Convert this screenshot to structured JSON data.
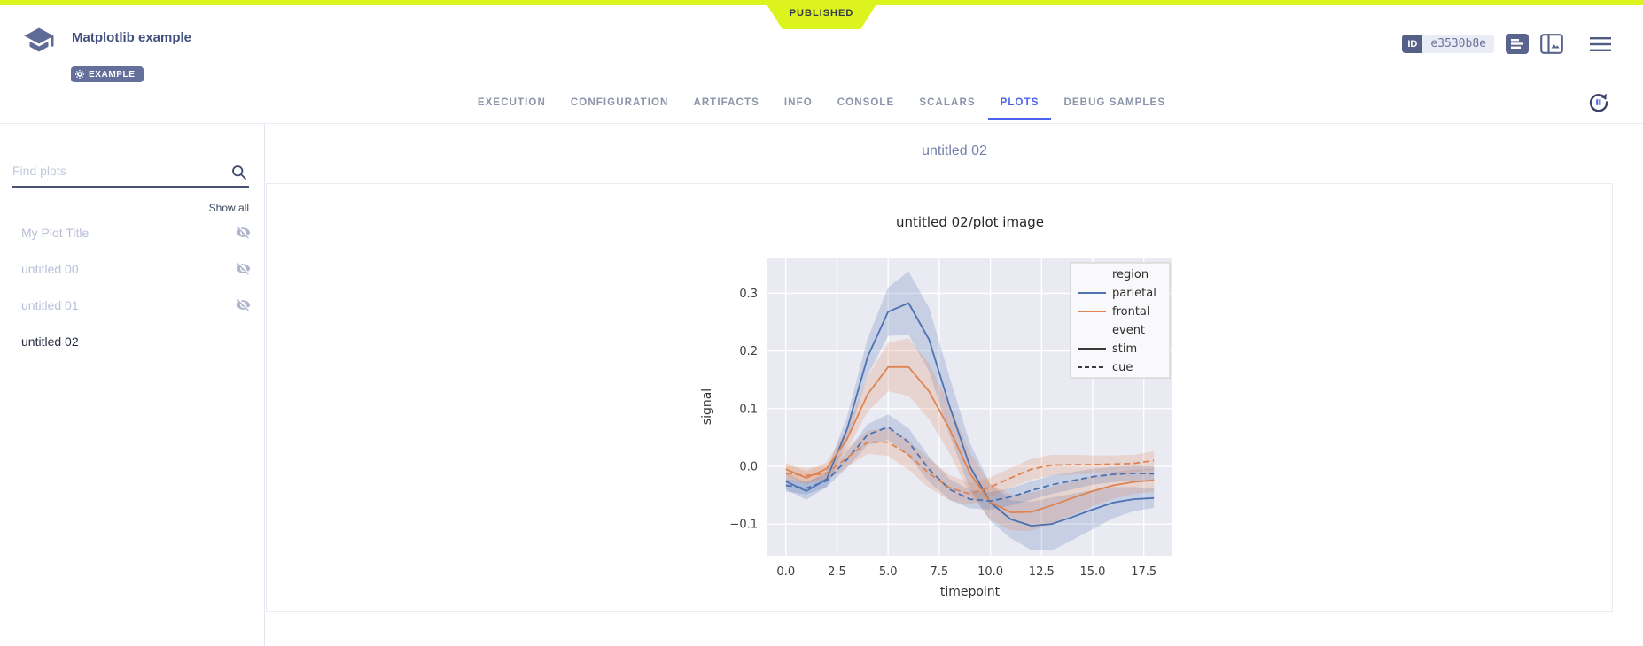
{
  "published_banner": {
    "label": "PUBLISHED"
  },
  "header": {
    "title": "Matplotlib example",
    "tag": "EXAMPLE",
    "id_chip": {
      "label": "ID",
      "value": "e3530b8e"
    },
    "accent_color": "#4a63ee",
    "banner_color": "#dcf31d",
    "icons": [
      "school-logo-icon",
      "details-icon",
      "side-panel-icon",
      "menu-icon",
      "auto-refresh-icon"
    ]
  },
  "tabs": {
    "items": [
      {
        "label": "EXECUTION",
        "active": false
      },
      {
        "label": "CONFIGURATION",
        "active": false
      },
      {
        "label": "ARTIFACTS",
        "active": false
      },
      {
        "label": "INFO",
        "active": false
      },
      {
        "label": "CONSOLE",
        "active": false
      },
      {
        "label": "SCALARS",
        "active": false
      },
      {
        "label": "PLOTS",
        "active": true
      },
      {
        "label": "DEBUG SAMPLES",
        "active": false
      }
    ]
  },
  "sidebar": {
    "search_placeholder": "Find plots",
    "show_all": "Show all",
    "items": [
      {
        "label": "My Plot Title",
        "hidden": true,
        "selected": false
      },
      {
        "label": "untitled 00",
        "hidden": true,
        "selected": false
      },
      {
        "label": "untitled 01",
        "hidden": true,
        "selected": false
      },
      {
        "label": "untitled 02",
        "hidden": false,
        "selected": true
      }
    ]
  },
  "main": {
    "group_title": "untitled 02"
  },
  "chart_data": {
    "type": "line",
    "title": "untitled 02/plot image",
    "xlabel": "timepoint",
    "ylabel": "signal",
    "xlim": [
      -0.9,
      18.9
    ],
    "ylim": [
      -0.155,
      0.362
    ],
    "x_ticks": [
      0.0,
      2.5,
      5.0,
      7.5,
      10.0,
      12.5,
      15.0,
      17.5
    ],
    "y_ticks": [
      -0.1,
      0.0,
      0.1,
      0.2,
      0.3
    ],
    "grid": true,
    "background": "#eaeaf2",
    "grid_color": "#ffffff",
    "legend": {
      "position": "upper right",
      "entries": [
        {
          "label": "region",
          "type": "title"
        },
        {
          "label": "parietal",
          "color": "#4c72b0",
          "dash": "solid"
        },
        {
          "label": "frontal",
          "color": "#dd8452",
          "dash": "solid"
        },
        {
          "label": "event",
          "type": "title"
        },
        {
          "label": "stim",
          "color": "#3a3a3a",
          "dash": "solid"
        },
        {
          "label": "cue",
          "color": "#3a3a3a",
          "dash": "dashed"
        }
      ]
    },
    "x": [
      0,
      1,
      2,
      3,
      4,
      5,
      6,
      7,
      8,
      9,
      10,
      11,
      12,
      13,
      14,
      15,
      16,
      17,
      18
    ],
    "series": [
      {
        "name": "parietal-stim",
        "color": "#4c72b0",
        "dash": "solid",
        "values": [
          -0.026,
          -0.043,
          -0.022,
          0.065,
          0.19,
          0.268,
          0.283,
          0.22,
          0.105,
          0.0,
          -0.063,
          -0.092,
          -0.103,
          -0.1,
          -0.088,
          -0.075,
          -0.063,
          -0.057,
          -0.055
        ],
        "ci_halfwidth": [
          0.014,
          0.015,
          0.014,
          0.022,
          0.032,
          0.042,
          0.055,
          0.055,
          0.05,
          0.04,
          0.032,
          0.033,
          0.042,
          0.046,
          0.04,
          0.034,
          0.027,
          0.021,
          0.017
        ]
      },
      {
        "name": "frontal-stim",
        "color": "#dd8452",
        "dash": "solid",
        "values": [
          -0.005,
          -0.02,
          -0.004,
          0.048,
          0.125,
          0.172,
          0.172,
          0.13,
          0.065,
          -0.012,
          -0.062,
          -0.08,
          -0.079,
          -0.068,
          -0.055,
          -0.043,
          -0.033,
          -0.027,
          -0.024
        ],
        "ci_halfwidth": [
          0.011,
          0.011,
          0.011,
          0.019,
          0.03,
          0.042,
          0.05,
          0.048,
          0.042,
          0.036,
          0.031,
          0.031,
          0.033,
          0.032,
          0.029,
          0.026,
          0.023,
          0.021,
          0.02
        ]
      },
      {
        "name": "parietal-cue",
        "color": "#4c72b0",
        "dash": "dashed",
        "values": [
          -0.033,
          -0.038,
          -0.025,
          0.012,
          0.055,
          0.068,
          0.042,
          -0.005,
          -0.04,
          -0.057,
          -0.06,
          -0.053,
          -0.042,
          -0.032,
          -0.025,
          -0.018,
          -0.014,
          -0.012,
          -0.013
        ],
        "ci_halfwidth": [
          0.011,
          0.011,
          0.011,
          0.014,
          0.018,
          0.022,
          0.024,
          0.022,
          0.018,
          0.016,
          0.015,
          0.015,
          0.016,
          0.016,
          0.015,
          0.014,
          0.013,
          0.013,
          0.013
        ]
      },
      {
        "name": "frontal-cue",
        "color": "#dd8452",
        "dash": "dashed",
        "values": [
          -0.012,
          -0.016,
          -0.012,
          0.015,
          0.042,
          0.042,
          0.02,
          -0.012,
          -0.037,
          -0.048,
          -0.036,
          -0.02,
          -0.005,
          0.002,
          0.003,
          0.003,
          0.004,
          0.005,
          0.01
        ],
        "ci_halfwidth": [
          0.013,
          0.013,
          0.013,
          0.016,
          0.02,
          0.024,
          0.026,
          0.025,
          0.022,
          0.019,
          0.017,
          0.017,
          0.018,
          0.018,
          0.017,
          0.016,
          0.015,
          0.015,
          0.016
        ]
      }
    ]
  }
}
